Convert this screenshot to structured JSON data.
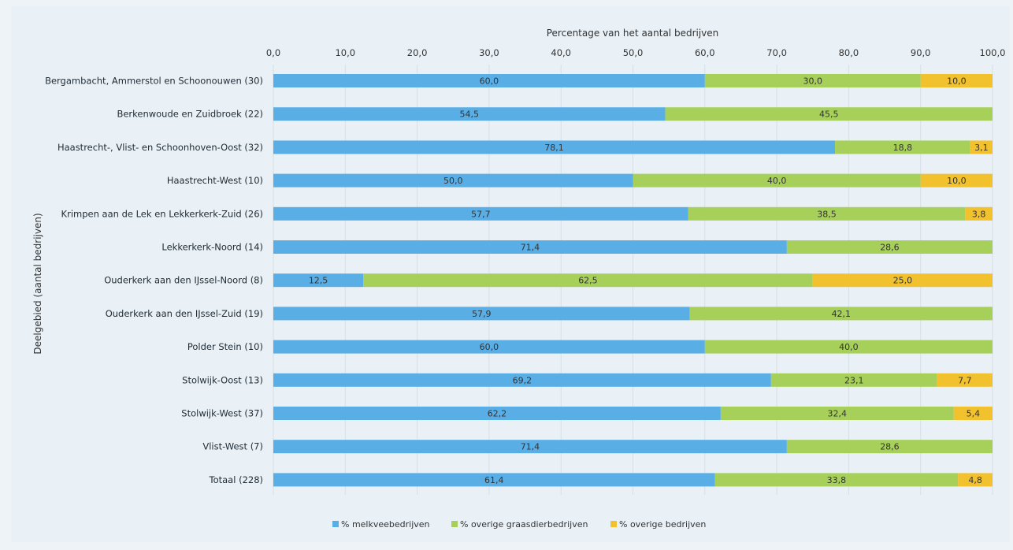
{
  "chart_data": {
    "type": "bar",
    "orientation": "horizontal",
    "stacked": true,
    "xlabel": "Percentage van het aantal bedrijven",
    "ylabel": "Deelgebied (aantal bedrijven)",
    "xlim": [
      0,
      100
    ],
    "xticks": [
      "0,0",
      "10,0",
      "20,0",
      "30,0",
      "40,0",
      "50,0",
      "60,0",
      "70,0",
      "80,0",
      "90,0",
      "100,0"
    ],
    "x_axis_position": "top",
    "grid": true,
    "legend_position": "bottom",
    "categories": [
      "Bergambacht, Ammerstol en Schoonouwen (30)",
      "Berkenwoude en Zuidbroek (22)",
      "Haastrecht-, Vlist- en Schoonhoven-Oost (32)",
      "Haastrecht-West (10)",
      "Krimpen aan de Lek en Lekkerkerk-Zuid (26)",
      "Lekkerkerk-Noord (14)",
      "Ouderkerk aan den IJssel-Noord (8)",
      "Ouderkerk aan den IJssel-Zuid (19)",
      "Polder Stein (10)",
      "Stolwijk-Oost (13)",
      "Stolwijk-West (37)",
      "Vlist-West (7)",
      "Totaal (228)"
    ],
    "series": [
      {
        "name": "% melkveebedrijven",
        "color": "#5aaee6",
        "values": [
          60.0,
          54.5,
          78.1,
          50.0,
          57.7,
          71.4,
          12.5,
          57.9,
          60.0,
          69.2,
          62.2,
          71.4,
          61.4
        ],
        "labels": [
          "60,0",
          "54,5",
          "78,1",
          "50,0",
          "57,7",
          "71,4",
          "12,5",
          "57,9",
          "60,0",
          "69,2",
          "62,2",
          "71,4",
          "61,4"
        ]
      },
      {
        "name": "% overige graasdierbedrijven",
        "color": "#a6d05a",
        "values": [
          30.0,
          45.5,
          18.8,
          40.0,
          38.5,
          28.6,
          62.5,
          42.1,
          40.0,
          23.1,
          32.4,
          28.6,
          33.8
        ],
        "labels": [
          "30,0",
          "45,5",
          "18,8",
          "40,0",
          "38,5",
          "28,6",
          "62,5",
          "42,1",
          "40,0",
          "23,1",
          "32,4",
          "28,6",
          "33,8"
        ]
      },
      {
        "name": "% overige bedrijven",
        "color": "#f2c12e",
        "values": [
          10.0,
          0,
          3.1,
          10.0,
          3.8,
          0,
          25.0,
          0,
          0,
          7.7,
          5.4,
          0,
          4.8
        ],
        "labels": [
          "10,0",
          "",
          "3,1",
          "10,0",
          "3,8",
          "",
          "25,0",
          "",
          "",
          "7,7",
          "5,4",
          "",
          "4,8"
        ]
      }
    ]
  }
}
